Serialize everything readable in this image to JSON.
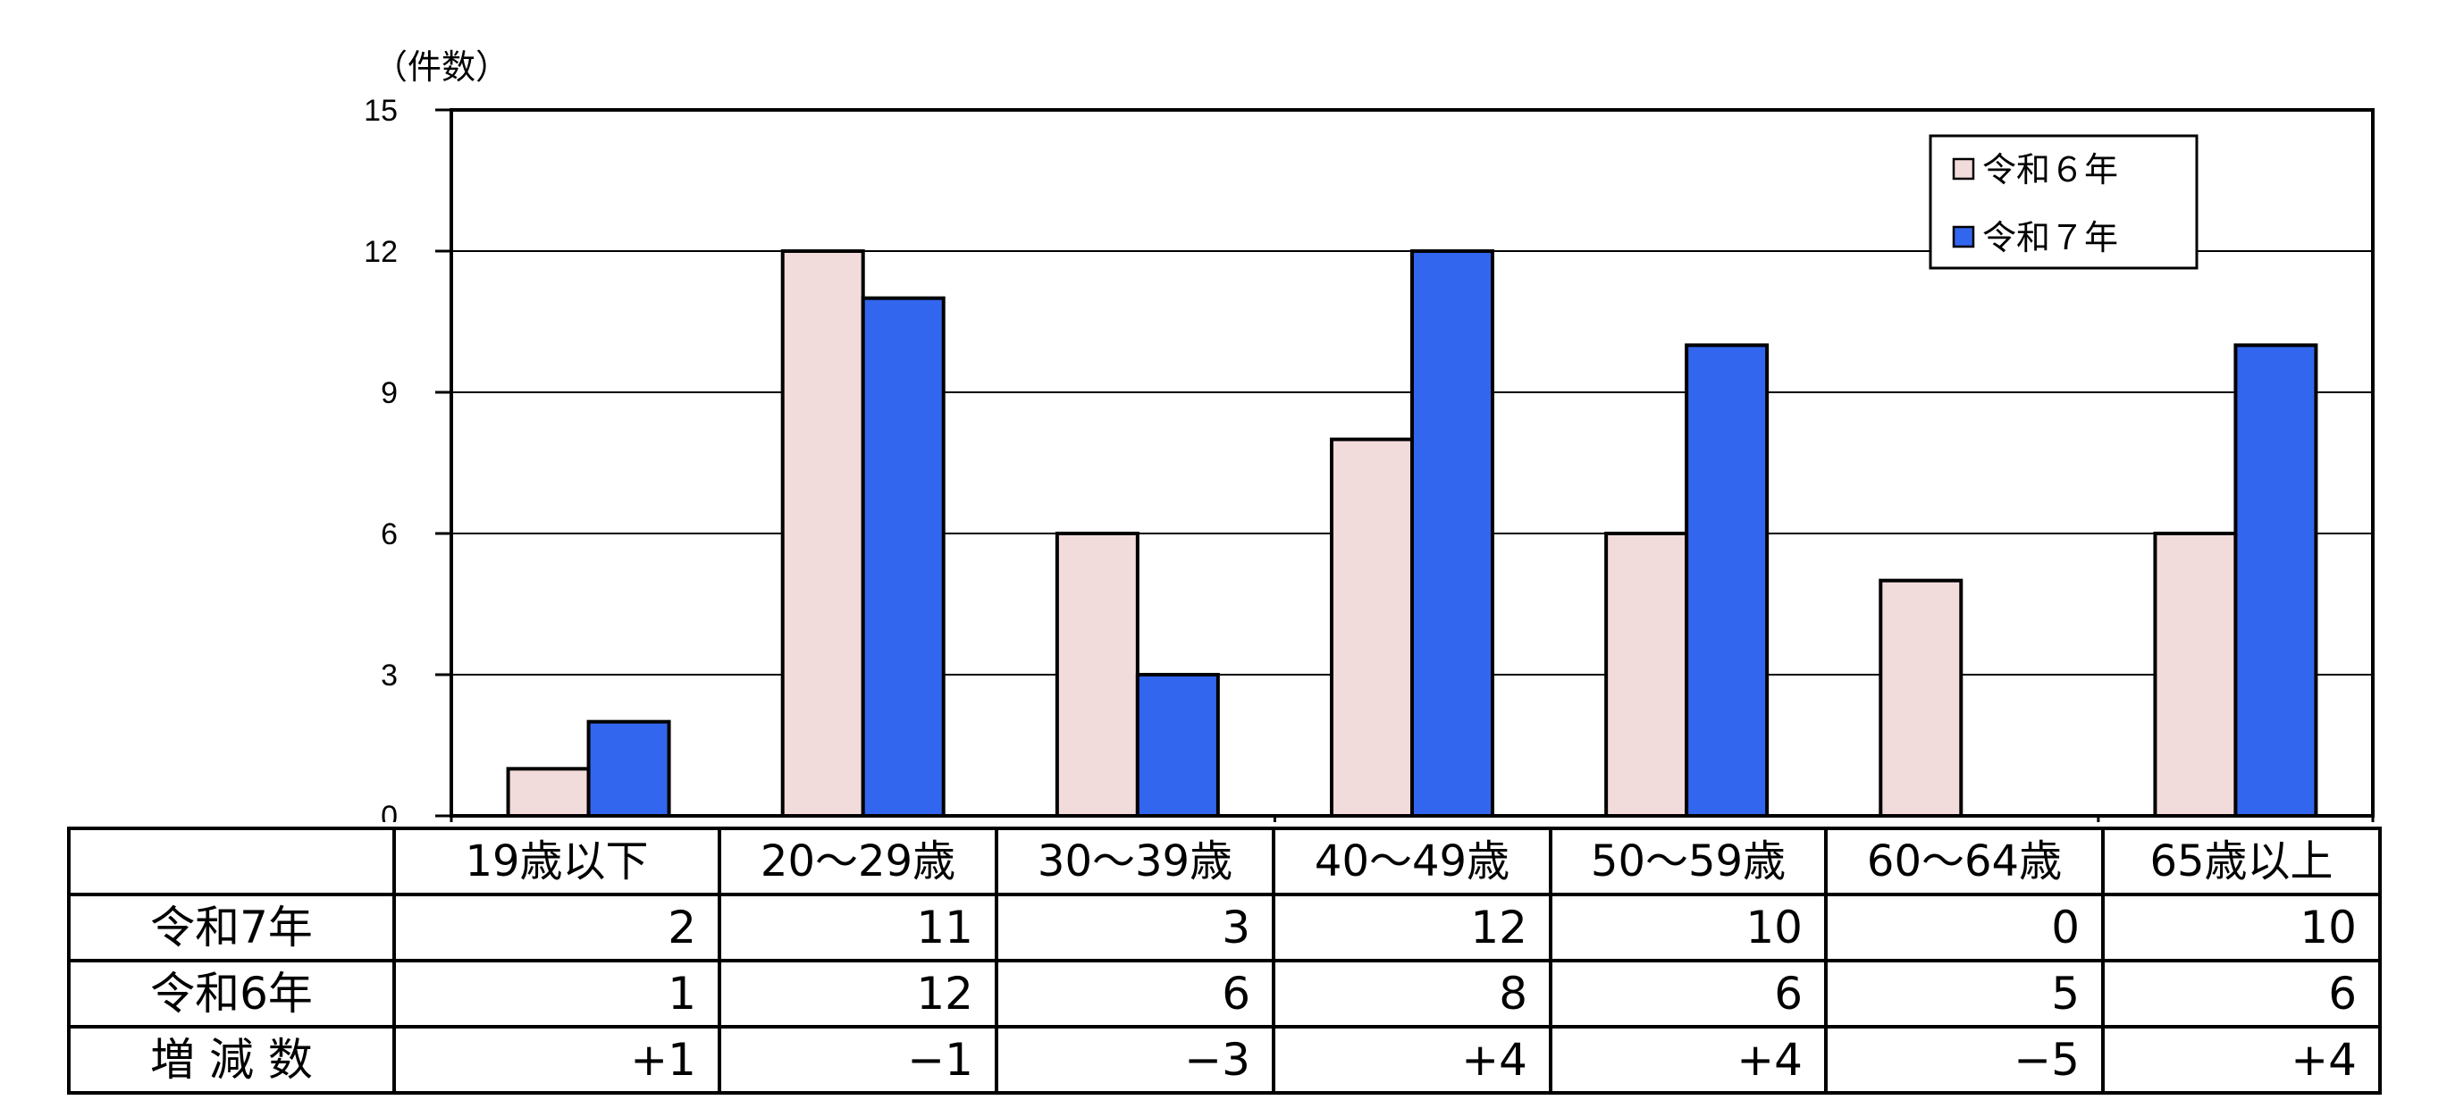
{
  "chart_data": {
    "type": "bar",
    "unit_label": "（件数）",
    "categories": [
      "19歳以下",
      "20～29歳",
      "30～39歳",
      "40～49歳",
      "50～59歳",
      "60～64歳",
      "65歳以上"
    ],
    "series": [
      {
        "name": "令和６年",
        "values": [
          1,
          12,
          6,
          8,
          6,
          5,
          6
        ],
        "color": "#f2dcdb"
      },
      {
        "name": "令和７年",
        "values": [
          2,
          11,
          3,
          12,
          10,
          0,
          10
        ],
        "color": "#3366ee"
      }
    ],
    "ylim": [
      0,
      15
    ],
    "yticks": [
      "0",
      "3",
      "6",
      "9",
      "12",
      "15"
    ],
    "grid": true,
    "legend_position": "top-right"
  },
  "table": {
    "header": [
      "",
      "19歳以下",
      "20～29歳",
      "30～39歳",
      "40～49歳",
      "50～59歳",
      "60～64歳",
      "65歳以上"
    ],
    "rows": [
      {
        "label": "令和7年",
        "cells": [
          "2",
          "11",
          "3",
          "12",
          "10",
          "0",
          "10"
        ]
      },
      {
        "label": "令和6年",
        "cells": [
          "1",
          "12",
          "6",
          "8",
          "6",
          "5",
          "6"
        ]
      },
      {
        "label": "増 減 数",
        "cells": [
          "+1",
          "−1",
          "−3",
          "+4",
          "+4",
          "−5",
          "+4"
        ]
      }
    ]
  }
}
